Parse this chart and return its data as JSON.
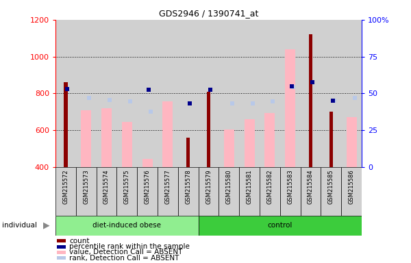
{
  "title": "GDS2946 / 1390741_at",
  "samples": [
    "GSM215572",
    "GSM215573",
    "GSM215574",
    "GSM215575",
    "GSM215576",
    "GSM215577",
    "GSM215578",
    "GSM215579",
    "GSM215580",
    "GSM215581",
    "GSM215582",
    "GSM215583",
    "GSM215584",
    "GSM215585",
    "GSM215586"
  ],
  "count_values": [
    860,
    null,
    null,
    null,
    null,
    null,
    560,
    810,
    null,
    null,
    null,
    null,
    1120,
    700,
    null
  ],
  "percentile_values": [
    825,
    null,
    null,
    null,
    820,
    null,
    745,
    820,
    null,
    null,
    null,
    840,
    860,
    760,
    null
  ],
  "absent_value_values": [
    null,
    710,
    720,
    645,
    445,
    755,
    null,
    null,
    605,
    660,
    695,
    1040,
    null,
    null,
    670
  ],
  "absent_rank_values": [
    null,
    775,
    765,
    755,
    700,
    null,
    null,
    null,
    745,
    745,
    755,
    835,
    null,
    760,
    775
  ],
  "ylim_left": [
    400,
    1200
  ],
  "ylim_right": [
    0,
    100
  ],
  "left_ticks": [
    400,
    600,
    800,
    1000,
    1200
  ],
  "right_ticks": [
    0,
    25,
    50,
    75,
    100
  ],
  "bar_color_count": "#8B0000",
  "bar_color_percentile": "#00008B",
  "bar_color_absent_value": "#FFB6C1",
  "bar_color_absent_rank": "#B8C8E8",
  "background_plot": "#ffffff",
  "background_sample": "#d0d0d0",
  "group_bg_obese": "#90EE90",
  "group_bg_control": "#3CCC3C",
  "obese_count": 7,
  "control_count": 8,
  "legend_items": [
    {
      "color": "#8B0000",
      "label": "count"
    },
    {
      "color": "#00008B",
      "label": "percentile rank within the sample"
    },
    {
      "color": "#FFB6C1",
      "label": "value, Detection Call = ABSENT"
    },
    {
      "color": "#B8C8E8",
      "label": "rank, Detection Call = ABSENT"
    }
  ]
}
